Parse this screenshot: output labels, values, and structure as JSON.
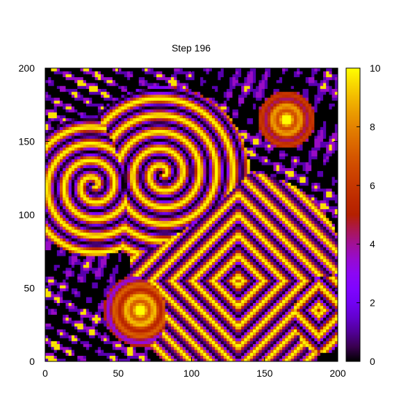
{
  "chart_data": {
    "type": "heatmap",
    "title": "Step 196",
    "xlabel": "",
    "ylabel": "",
    "xlim": [
      0,
      200
    ],
    "ylim": [
      0,
      200
    ],
    "xticks": [
      "0",
      "50",
      "100",
      "150",
      "200"
    ],
    "yticks": [
      "0",
      "50",
      "100",
      "150",
      "200"
    ],
    "grid": false,
    "grid_size": [
      100,
      100
    ],
    "colorbar": {
      "range": [
        0,
        10
      ],
      "ticks": [
        "0",
        "2",
        "4",
        "6",
        "8",
        "10"
      ],
      "colormap": "gnuplot",
      "colors": [
        "#000000",
        "#7a00ff",
        "#c03a00",
        "#ff8a00",
        "#ffff00"
      ]
    },
    "features": [
      {
        "kind": "spiral",
        "center": [
          33,
          120
        ],
        "size": 48
      },
      {
        "kind": "spiral",
        "center": [
          80,
          128
        ],
        "size": 60
      },
      {
        "kind": "target",
        "center": [
          132,
          55
        ],
        "size": 75
      },
      {
        "kind": "target",
        "center": [
          187,
          35
        ],
        "size": 30
      },
      {
        "kind": "blob",
        "center": [
          65,
          35
        ],
        "size": 25
      },
      {
        "kind": "blob",
        "center": [
          165,
          165
        ],
        "size": 20
      }
    ]
  }
}
